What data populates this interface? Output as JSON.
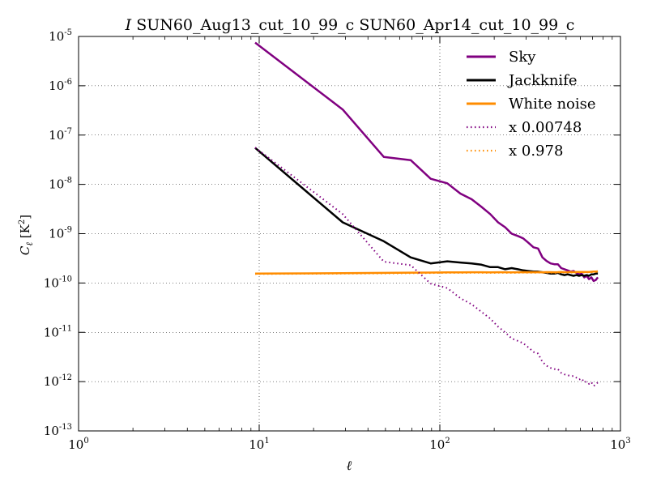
{
  "chart_data": {
    "type": "line",
    "title": "SUN60_Aug13_cut_10_99_c SUN60_Apr14_cut_10_99_c",
    "title_prefix": "I",
    "xlabel": "ℓ",
    "ylabel": "C_ℓ [K²]",
    "xscale": "log",
    "yscale": "log",
    "xlim": [
      1,
      1000
    ],
    "ylim": [
      1e-13,
      1e-05
    ],
    "grid": true,
    "legend_position": "top-right",
    "x_ticks": [
      {
        "base": "10",
        "exp": "0"
      },
      {
        "base": "10",
        "exp": "1"
      },
      {
        "base": "10",
        "exp": "2"
      },
      {
        "base": "10",
        "exp": "3"
      }
    ],
    "y_ticks": [
      {
        "base": "10",
        "exp": "-13"
      },
      {
        "base": "10",
        "exp": "-12"
      },
      {
        "base": "10",
        "exp": "-11"
      },
      {
        "base": "10",
        "exp": "-10"
      },
      {
        "base": "10",
        "exp": "-9"
      },
      {
        "base": "10",
        "exp": "-8"
      },
      {
        "base": "10",
        "exp": "-7"
      },
      {
        "base": "10",
        "exp": "-6"
      },
      {
        "base": "10",
        "exp": "-5"
      }
    ],
    "series": [
      {
        "name": "Sky",
        "color": "#800080",
        "style": "solid",
        "x": [
          9.5,
          29,
          49,
          69,
          89,
          110,
          130,
          150,
          170,
          190,
          210,
          230,
          250,
          270,
          290,
          310,
          330,
          350,
          370,
          390,
          410,
          430,
          450,
          470,
          490,
          510,
          530,
          550,
          570,
          590,
          610,
          630,
          650,
          670,
          690,
          710,
          730,
          750
        ],
        "y": [
          7.5e-06,
          3.3e-07,
          3.6e-08,
          3.1e-08,
          1.3e-08,
          1.05e-08,
          6.5e-09,
          5e-09,
          3.5e-09,
          2.5e-09,
          1.7e-09,
          1.35e-09,
          1e-09,
          9e-10,
          8e-10,
          6.5e-10,
          5.3e-10,
          5e-10,
          3.3e-10,
          2.8e-10,
          2.5e-10,
          2.4e-10,
          2.4e-10,
          2e-10,
          1.9e-10,
          1.8e-10,
          1.7e-10,
          1.75e-10,
          1.6e-10,
          1.5e-10,
          1.55e-10,
          1.3e-10,
          1.4e-10,
          1.2e-10,
          1.3e-10,
          1.1e-10,
          1.15e-10,
          1.3e-10
        ]
      },
      {
        "name": "Jackknife",
        "color": "#000000",
        "style": "solid",
        "x": [
          9.5,
          29,
          49,
          69,
          89,
          110,
          130,
          150,
          170,
          190,
          210,
          230,
          250,
          270,
          290,
          310,
          330,
          350,
          370,
          390,
          410,
          430,
          450,
          470,
          490,
          510,
          530,
          550,
          570,
          590,
          610,
          630,
          650,
          670,
          690,
          710,
          730,
          750
        ],
        "y": [
          5.5e-08,
          1.7e-09,
          7e-10,
          3.3e-10,
          2.5e-10,
          2.75e-10,
          2.6e-10,
          2.5e-10,
          2.35e-10,
          2.1e-10,
          2.1e-10,
          1.9e-10,
          2e-10,
          1.9e-10,
          1.8e-10,
          1.75e-10,
          1.7e-10,
          1.7e-10,
          1.65e-10,
          1.6e-10,
          1.55e-10,
          1.55e-10,
          1.6e-10,
          1.5e-10,
          1.45e-10,
          1.5e-10,
          1.45e-10,
          1.4e-10,
          1.45e-10,
          1.4e-10,
          1.45e-10,
          1.4e-10,
          1.45e-10,
          1.4e-10,
          1.5e-10,
          1.5e-10,
          1.55e-10,
          1.55e-10
        ]
      },
      {
        "name": "White noise",
        "color": "#ff8c00",
        "style": "solid",
        "x": [
          9.5,
          29,
          49,
          69,
          89,
          110,
          130,
          150,
          170,
          190,
          210,
          230,
          250,
          270,
          290,
          310,
          330,
          350,
          370,
          390,
          410,
          430,
          450,
          470,
          490,
          510,
          530,
          550,
          570,
          590,
          610,
          630,
          650,
          670,
          690,
          710,
          730,
          750
        ],
        "y": [
          1.55e-10,
          1.58e-10,
          1.6e-10,
          1.62e-10,
          1.63e-10,
          1.64e-10,
          1.64e-10,
          1.65e-10,
          1.65e-10,
          1.64e-10,
          1.65e-10,
          1.65e-10,
          1.64e-10,
          1.65e-10,
          1.66e-10,
          1.65e-10,
          1.65e-10,
          1.66e-10,
          1.65e-10,
          1.66e-10,
          1.66e-10,
          1.65e-10,
          1.66e-10,
          1.67e-10,
          1.66e-10,
          1.66e-10,
          1.67e-10,
          1.66e-10,
          1.67e-10,
          1.67e-10,
          1.68e-10,
          1.67e-10,
          1.68e-10,
          1.68e-10,
          1.69e-10,
          1.7e-10,
          1.71e-10,
          1.72e-10
        ]
      },
      {
        "name": "x 0.00748",
        "color": "#800080",
        "style": "dotted",
        "x": [
          9.5,
          29,
          49,
          69,
          89,
          110,
          130,
          150,
          170,
          190,
          210,
          230,
          250,
          270,
          290,
          310,
          330,
          350,
          370,
          390,
          410,
          430,
          450,
          470,
          490,
          510,
          530,
          550,
          570,
          590,
          610,
          630,
          650,
          670,
          690,
          710,
          730,
          750
        ],
        "y": [
          5.6e-08,
          2.5e-09,
          2.7e-10,
          2.3e-10,
          9.7e-11,
          7.9e-11,
          4.9e-11,
          3.7e-11,
          2.6e-11,
          1.9e-11,
          1.3e-11,
          1e-11,
          7.5e-12,
          6.7e-12,
          6e-12,
          4.9e-12,
          4e-12,
          3.7e-12,
          2.5e-12,
          2.1e-12,
          1.9e-12,
          1.8e-12,
          1.8e-12,
          1.5e-12,
          1.4e-12,
          1.35e-12,
          1.3e-12,
          1.3e-12,
          1.2e-12,
          1.1e-12,
          1.15e-12,
          9.7e-13,
          1e-12,
          9e-13,
          9.7e-13,
          8.2e-13,
          8.6e-13,
          9.7e-13
        ]
      },
      {
        "name": "x 0.978",
        "color": "#ff8c00",
        "style": "dotted",
        "x": [
          9.5,
          29,
          49,
          69,
          89,
          110,
          130,
          150,
          170,
          190,
          210,
          230,
          250,
          270,
          290,
          310,
          330,
          350,
          370,
          390,
          410,
          430,
          450,
          470,
          490,
          510,
          530,
          550,
          570,
          590,
          610,
          630,
          650,
          670,
          690,
          710,
          730,
          750
        ],
        "y": [
          1.52e-10,
          1.55e-10,
          1.56e-10,
          1.58e-10,
          1.59e-10,
          1.6e-10,
          1.6e-10,
          1.61e-10,
          1.61e-10,
          1.6e-10,
          1.61e-10,
          1.61e-10,
          1.6e-10,
          1.61e-10,
          1.62e-10,
          1.61e-10,
          1.61e-10,
          1.62e-10,
          1.61e-10,
          1.62e-10,
          1.62e-10,
          1.61e-10,
          1.62e-10,
          1.63e-10,
          1.62e-10,
          1.62e-10,
          1.63e-10,
          1.62e-10,
          1.63e-10,
          1.63e-10,
          1.64e-10,
          1.63e-10,
          1.64e-10,
          1.64e-10,
          1.65e-10,
          1.66e-10,
          1.67e-10,
          1.68e-10
        ]
      }
    ]
  }
}
